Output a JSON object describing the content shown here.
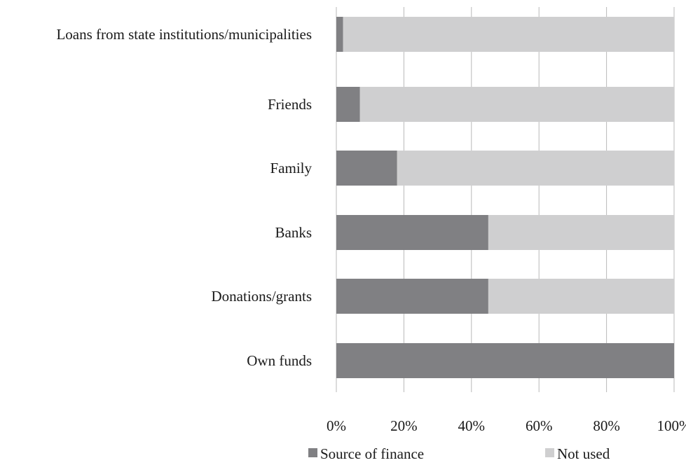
{
  "chart_data": {
    "type": "bar",
    "orientation": "horizontal",
    "stacked": true,
    "categories": [
      "Loans from state institutions/municipalities",
      "Friends",
      "Family",
      "Banks",
      "Donations/grants",
      "Own funds"
    ],
    "series": [
      {
        "name": "Source of finance",
        "color": "#808083",
        "values": [
          2,
          7,
          18,
          45,
          45,
          100
        ]
      },
      {
        "name": "Not used",
        "color": "#cfcfd0",
        "values": [
          98,
          93,
          82,
          55,
          55,
          0
        ]
      }
    ],
    "xticks": [
      "0%",
      "20%",
      "40%",
      "60%",
      "80%",
      "100%"
    ],
    "xlim": [
      0,
      100
    ],
    "grid": true,
    "legend": "bottom",
    "title": "",
    "xlabel": "",
    "ylabel": ""
  }
}
